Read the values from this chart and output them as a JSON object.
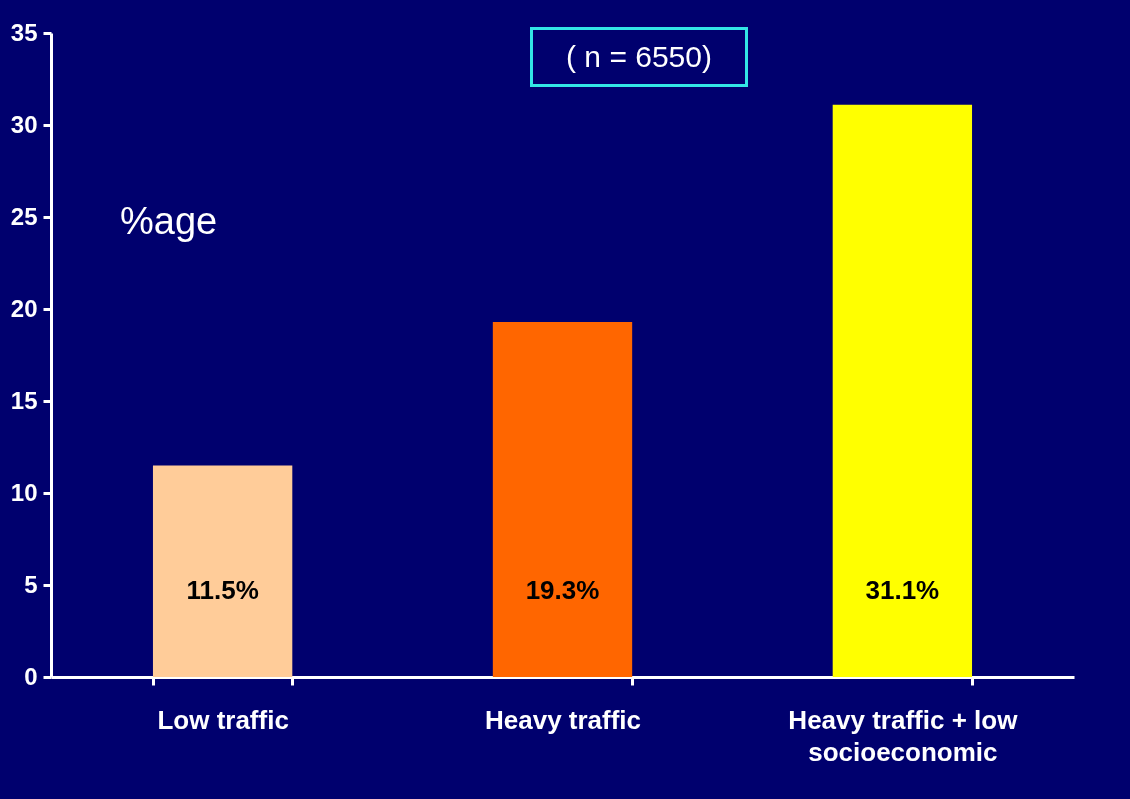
{
  "chart_data": {
    "type": "bar",
    "ylabel": "%age",
    "annotations": [
      "( n = 6550)"
    ],
    "categories": [
      "Low traffic",
      "Heavy traffic",
      "Heavy traffic + low socioeconomic"
    ],
    "values": [
      11.5,
      19.3,
      31.1
    ],
    "colors": [
      "#ffcc99",
      "#ff6600",
      "#ffff00"
    ],
    "value_labels": [
      "11.5%",
      "19.3%",
      "31.1%"
    ],
    "ylim": [
      0,
      35
    ],
    "yticks": [
      0,
      5,
      10,
      15,
      20,
      25,
      30,
      35
    ],
    "grid": false
  }
}
